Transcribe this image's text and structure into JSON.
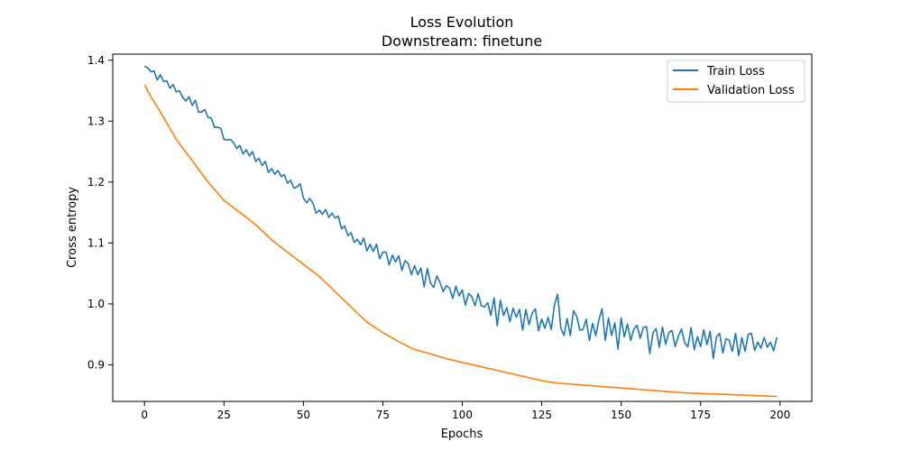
{
  "chart_data": {
    "type": "line",
    "title": "Loss Evolution",
    "subtitle": "Downstream: finetune",
    "xlabel": "Epochs",
    "ylabel": "Cross entropy",
    "xlim": [
      -10,
      210
    ],
    "ylim": [
      0.84,
      1.41
    ],
    "xticks": [
      0,
      25,
      50,
      75,
      100,
      125,
      150,
      175,
      200
    ],
    "yticks": [
      0.9,
      1.0,
      1.1,
      1.2,
      1.3,
      1.4
    ],
    "xtick_labels": [
      "0",
      "25",
      "50",
      "75",
      "100",
      "125",
      "150",
      "175",
      "200"
    ],
    "ytick_labels": [
      "0.9",
      "1.0",
      "1.1",
      "1.2",
      "1.3",
      "1.4"
    ],
    "grid": false,
    "legend_position": "top-right",
    "series": [
      {
        "name": "Train Loss",
        "color": "#1f77b4",
        "anchors": [
          [
            0,
            1.39
          ],
          [
            2,
            1.383
          ],
          [
            5,
            1.372
          ],
          [
            8,
            1.36
          ],
          [
            10,
            1.35
          ],
          [
            15,
            1.33
          ],
          [
            20,
            1.31
          ],
          [
            25,
            1.275
          ],
          [
            30,
            1.255
          ],
          [
            35,
            1.24
          ],
          [
            40,
            1.22
          ],
          [
            45,
            1.205
          ],
          [
            50,
            1.18
          ],
          [
            55,
            1.15
          ],
          [
            60,
            1.145
          ],
          [
            65,
            1.11
          ],
          [
            70,
            1.095
          ],
          [
            75,
            1.08
          ],
          [
            80,
            1.07
          ],
          [
            85,
            1.055
          ],
          [
            90,
            1.04
          ],
          [
            95,
            1.025
          ],
          [
            100,
            1.015
          ],
          [
            105,
            1.005
          ],
          [
            110,
            0.99
          ],
          [
            115,
            0.985
          ],
          [
            120,
            0.975
          ],
          [
            125,
            0.97
          ],
          [
            130,
            0.97
          ],
          [
            135,
            0.965
          ],
          [
            140,
            0.96
          ],
          [
            145,
            0.96
          ],
          [
            150,
            0.955
          ],
          [
            155,
            0.95
          ],
          [
            160,
            0.948
          ],
          [
            165,
            0.945
          ],
          [
            170,
            0.942
          ],
          [
            175,
            0.94
          ],
          [
            180,
            0.938
          ],
          [
            185,
            0.936
          ],
          [
            190,
            0.934
          ],
          [
            195,
            0.933
          ],
          [
            199,
            0.933
          ]
        ],
        "noise": [
          0,
          0.001,
          -0.002,
          0.003,
          -0.008,
          0.004,
          -0.003,
          0.002,
          -0.006,
          0.005,
          -0.002,
          0.004,
          -0.003,
          -0.005,
          0.006,
          -0.004,
          0.008,
          -0.007,
          -0.003,
          0.005,
          -0.004,
          0.002,
          -0.006,
          0.001,
          0.006,
          -0.005,
          -0.002,
          0.003,
          0.002,
          -0.004,
          0.005,
          -0.006,
          0.004,
          -0.003,
          0.007,
          -0.006,
          0.003,
          -0.005,
          0.006,
          -0.008,
          0.002,
          -0.004,
          0.005,
          -0.002,
          0.004,
          -0.007,
          0.003,
          -0.005,
          0.002,
          0.012,
          -0.006,
          -0.008,
          0.005,
          0.003,
          -0.007,
          0.004,
          -0.002,
          0.007,
          -0.005,
          0.003,
          -0.004,
          0.006,
          -0.008,
          0.004,
          -0.005,
          0.007,
          -0.006,
          0.002,
          -0.004,
          0.01,
          -0.008,
          0.006,
          -0.003,
          0.012,
          -0.009,
          0.005,
          0.007,
          -0.012,
          0.006,
          -0.003,
          0.009,
          -0.012,
          0.007,
          0.005,
          -0.01,
          0.008,
          -0.004,
          0.01,
          -0.018,
          0.015,
          -0.006,
          -0.01,
          0.012,
          0.004,
          -0.008,
          0.005,
          0.003,
          -0.012,
          0.01,
          -0.004,
          0.008,
          -0.015,
          0.006,
          0.003,
          -0.01,
          0.012,
          -0.005,
          -0.004,
          0.006,
          -0.012,
          0.02,
          -0.025,
          0.018,
          -0.006,
          0.008,
          -0.014,
          0.01,
          -0.003,
          0.012,
          -0.02,
          0.016,
          -0.008,
          0.012,
          0.02,
          -0.015,
          0.005,
          -0.01,
          0.008,
          -0.012,
          0.028,
          0.046,
          -0.008,
          -0.02,
          0.009,
          -0.018,
          0.024,
          0.016,
          -0.006,
          -0.004,
          0.014,
          -0.02,
          0.008,
          -0.012,
          0.014,
          0.032,
          -0.02,
          0.018,
          -0.01,
          0.012,
          -0.03,
          0.022,
          -0.008,
          0.014,
          -0.012,
          0.008,
          0.015,
          -0.006,
          0.012,
          0.014,
          -0.03,
          0.004,
          0.012,
          -0.018,
          0.016,
          -0.012,
          0.008,
          0.012,
          -0.014,
          0.004,
          0.016,
          -0.006,
          -0.012,
          0.02,
          -0.016,
          0.006,
          -0.01,
          0.018,
          -0.006,
          0.016,
          -0.028,
          0.008,
          0.014,
          -0.018,
          0.006,
          0.004,
          -0.014,
          0.016,
          -0.02,
          0.01,
          -0.012,
          0.016,
          0.018,
          -0.01,
          0.004,
          -0.006,
          0.012,
          -0.004,
          0.004,
          -0.01,
          0.012,
          -0.004,
          0.002,
          -0.01,
          0.01,
          -0.004,
          0.002
        ]
      },
      {
        "name": "Validation Loss",
        "color": "#ff7f0e",
        "anchors": [
          [
            0,
            1.36
          ],
          [
            2,
            1.34
          ],
          [
            5,
            1.315
          ],
          [
            10,
            1.27
          ],
          [
            15,
            1.235
          ],
          [
            20,
            1.2
          ],
          [
            25,
            1.17
          ],
          [
            30,
            1.15
          ],
          [
            35,
            1.13
          ],
          [
            40,
            1.105
          ],
          [
            45,
            1.085
          ],
          [
            50,
            1.065
          ],
          [
            55,
            1.045
          ],
          [
            60,
            1.02
          ],
          [
            65,
            0.995
          ],
          [
            70,
            0.97
          ],
          [
            75,
            0.953
          ],
          [
            80,
            0.938
          ],
          [
            85,
            0.925
          ],
          [
            90,
            0.918
          ],
          [
            95,
            0.91
          ],
          [
            100,
            0.904
          ],
          [
            105,
            0.898
          ],
          [
            110,
            0.892
          ],
          [
            115,
            0.886
          ],
          [
            120,
            0.88
          ],
          [
            125,
            0.874
          ],
          [
            130,
            0.87
          ],
          [
            135,
            0.868
          ],
          [
            140,
            0.866
          ],
          [
            145,
            0.864
          ],
          [
            150,
            0.862
          ],
          [
            155,
            0.86
          ],
          [
            160,
            0.858
          ],
          [
            165,
            0.856
          ],
          [
            170,
            0.854
          ],
          [
            175,
            0.853
          ],
          [
            180,
            0.852
          ],
          [
            185,
            0.851
          ],
          [
            190,
            0.85
          ],
          [
            195,
            0.849
          ],
          [
            199,
            0.848
          ]
        ],
        "noise": []
      }
    ]
  }
}
